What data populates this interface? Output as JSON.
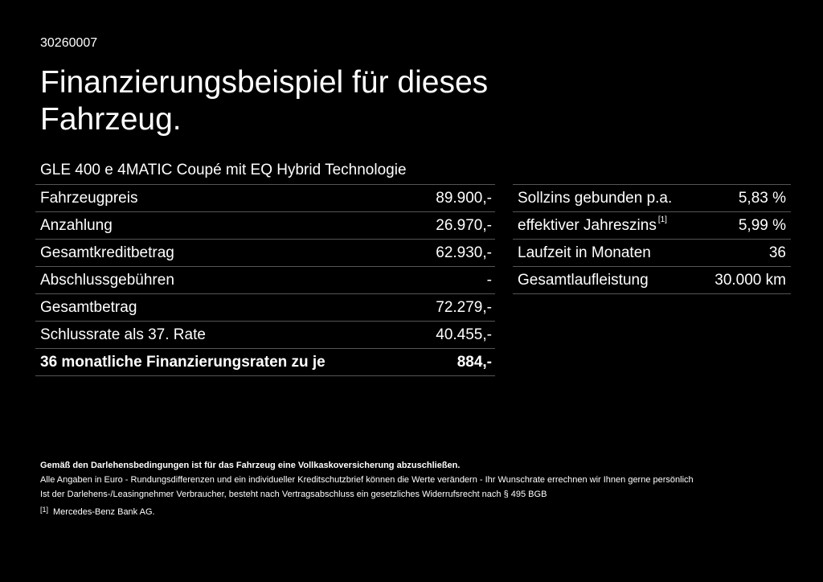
{
  "code": "30260007",
  "title": "Finanzierungsbeispiel für dieses Fahrzeug.",
  "model": "GLE 400 e 4MATIC Coupé mit EQ Hybrid Technologie",
  "left_rows": [
    {
      "label": "Fahrzeugpreis",
      "value": "89.900,-"
    },
    {
      "label": "Anzahlung",
      "value": "26.970,-"
    },
    {
      "label": "Gesamtkreditbetrag",
      "value": "62.930,-"
    },
    {
      "label": "Abschlussgebühren",
      "value": "-"
    },
    {
      "label": "Gesamtbetrag",
      "value": "72.279,-"
    },
    {
      "label": "Schlussrate als 37. Rate",
      "value": "40.455,-"
    },
    {
      "label": "36 monatliche Finanzierungsraten zu je",
      "value": "884,-"
    }
  ],
  "right_rows": [
    {
      "label": "Sollzins gebunden p.a.",
      "value": "5,83 %"
    },
    {
      "label": "effektiver Jahreszins",
      "ref": "[1]",
      "value": "5,99 %"
    },
    {
      "label": "Laufzeit in Monaten",
      "value": "36"
    },
    {
      "label": "Gesamtlaufleistung",
      "value": "30.000 km"
    }
  ],
  "notes": {
    "bold_line": "Gemäß den Darlehensbedingungen ist für das Fahrzeug eine Vollkaskoversicherung abzuschließen.",
    "line1": "Alle Angaben in Euro - Rundungsdifferenzen und ein individueller Kreditschutzbrief können die Werte verändern - Ihr Wunschrate errechnen wir Ihnen gerne persönlich",
    "line2": "Ist der Darlehens-/Leasingnehmer Verbraucher, besteht nach Vertragsabschluss ein gesetzliches Widerrufsrecht nach § 495 BGB",
    "footnote_ref": "[1]",
    "footnote_text": "Mercedes-Benz Bank AG."
  }
}
